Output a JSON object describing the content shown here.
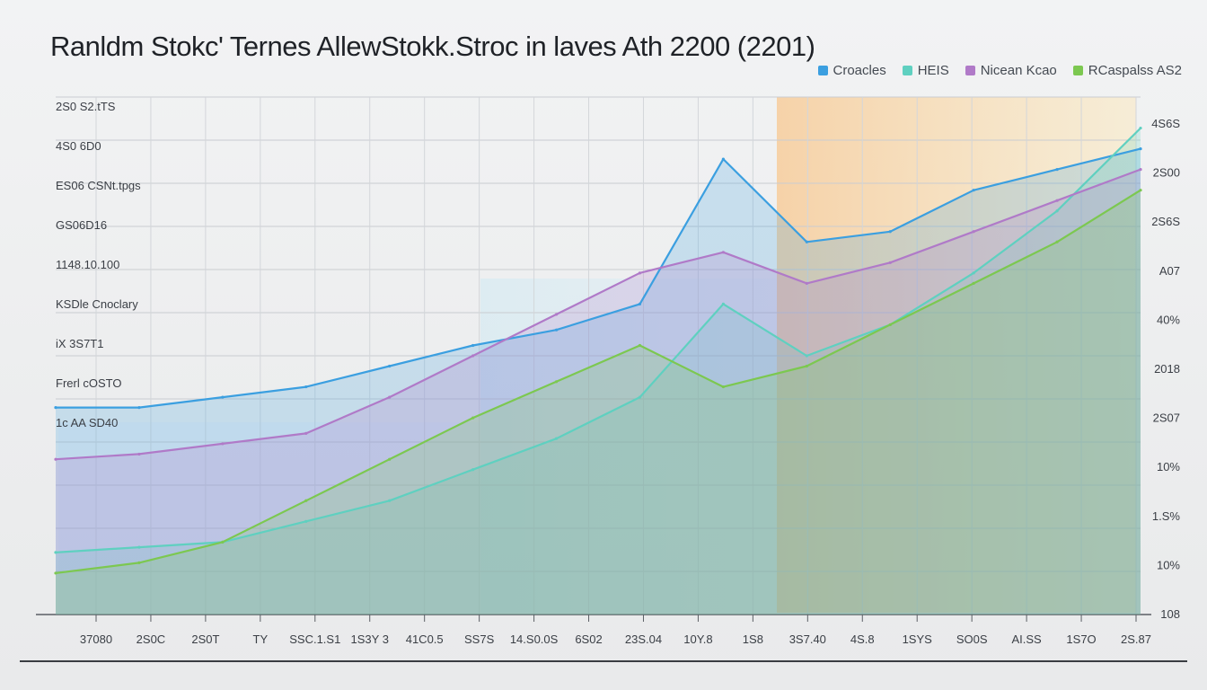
{
  "chart_data": {
    "type": "area",
    "title": "Ranldm Stokc' Ternes AllewStokk.Stroc in laves Ath 2200 (2201)",
    "legend": [
      {
        "name": "Croacles",
        "color": "#3b9fe0"
      },
      {
        "name": "HEIS",
        "color": "#5fd0c0"
      },
      {
        "name": "Nicean Kcao",
        "color": "#b07ac8"
      },
      {
        "name": "RCaspalss AS2",
        "color": "#7cc850"
      }
    ],
    "left_labels": [
      "2S0 S2.tTS",
      "4S0 6D0",
      "ES06 CSNt.tpgs",
      "GS06D16",
      "1148.10.100",
      "KSDle Cnoclary",
      "iX 3S7T1",
      "Frerl cOSTO",
      "1c AA SD40"
    ],
    "right_labels": [
      "4S6S",
      "2S00",
      "2S6S",
      "A07",
      "40%",
      "2018",
      "2S07",
      "10%",
      "1.S%",
      "10%",
      "108"
    ],
    "x_tick_labels": [
      "37080",
      "2S0C",
      "2S0T",
      "TY",
      "SSC.1.S1",
      "1S3Y 3",
      "41C0.5",
      "SS7S",
      "14.S0.0S",
      "6S02",
      "23S.04",
      "10Y.8",
      "1S8",
      "3S7.40",
      "4S.8",
      "1SYS",
      "SO0S",
      "AI.SS",
      "1S7O",
      "2S.87"
    ],
    "ylim": [
      0,
      100
    ],
    "series": [
      {
        "name": "Croacles",
        "color": "#3b9fe0",
        "values": [
          40,
          40,
          42,
          44,
          48,
          52,
          55,
          60,
          88,
          72,
          74,
          82,
          86,
          90
        ]
      },
      {
        "name": "HEIS",
        "color": "#5fd0c0",
        "values": [
          12,
          13,
          14,
          18,
          22,
          28,
          34,
          42,
          60,
          50,
          56,
          66,
          78,
          94
        ]
      },
      {
        "name": "Nicean Kcao",
        "color": "#b07ac8",
        "values": [
          30,
          31,
          33,
          35,
          42,
          50,
          58,
          66,
          70,
          64,
          68,
          74,
          80,
          86
        ]
      },
      {
        "name": "RCaspalss AS2",
        "color": "#7cc850",
        "values": [
          8,
          10,
          14,
          22,
          30,
          38,
          45,
          52,
          44,
          48,
          56,
          64,
          72,
          82
        ]
      }
    ],
    "x": [
      1,
      2,
      3,
      4,
      5,
      6,
      7,
      8,
      9,
      10,
      11,
      12,
      13,
      14
    ]
  }
}
